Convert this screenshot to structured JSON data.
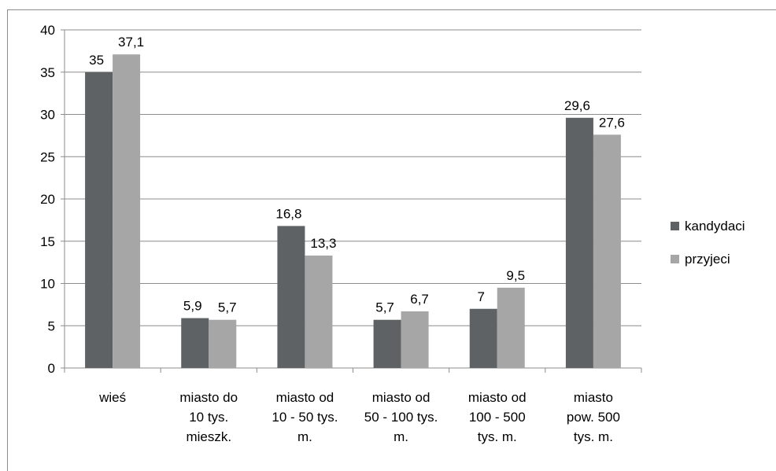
{
  "chart_data": {
    "type": "bar",
    "title": "",
    "xlabel": "",
    "ylabel": "",
    "ylim": [
      0,
      40
    ],
    "yticks": [
      0,
      5,
      10,
      15,
      20,
      25,
      30,
      35,
      40
    ],
    "grid": true,
    "legend_position": "right",
    "categories": [
      [
        "wieś"
      ],
      [
        "miasto do",
        "10 tys.",
        "mieszk."
      ],
      [
        "miasto od",
        "10 - 50 tys.",
        "m."
      ],
      [
        "miasto od",
        "50 - 100 tys.",
        "m."
      ],
      [
        "miasto od",
        "100 - 500",
        "tys. m."
      ],
      [
        "miasto",
        "pow. 500",
        "tys. m."
      ]
    ],
    "series": [
      {
        "name": "kandydaci",
        "color": "#5f6264",
        "values": [
          35,
          5.9,
          16.8,
          5.7,
          7,
          29.6
        ],
        "labels": [
          "35",
          "5,9",
          "16,8",
          "5,7",
          "7",
          "29,6"
        ]
      },
      {
        "name": "przyjeci",
        "color": "#a6a6a6",
        "values": [
          37.1,
          5.7,
          13.3,
          6.7,
          9.5,
          27.6
        ],
        "labels": [
          "37,1",
          "5,7",
          "13,3",
          "6,7",
          "9,5",
          "27,6"
        ]
      }
    ]
  }
}
